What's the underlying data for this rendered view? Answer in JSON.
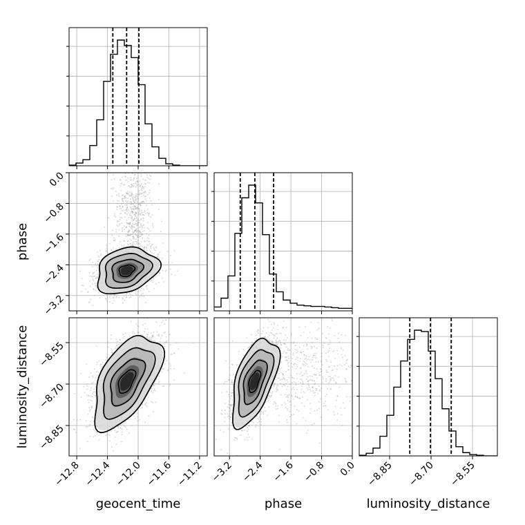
{
  "chart_data": {
    "type": "corner",
    "params": [
      "geocent_time",
      "phase",
      "luminosity_distance"
    ],
    "axes": {
      "geocent_time": {
        "label": "geocent_time",
        "range": [
          -12.9,
          -11.1
        ],
        "ticks": [
          -12.8,
          -12.4,
          -12.0,
          -11.6,
          -11.2
        ],
        "tick_labels": [
          "−12.8",
          "−12.4",
          "−12.0",
          "−11.6",
          "−11.2"
        ]
      },
      "phase": {
        "label": "phase",
        "range": [
          -3.6,
          0.0
        ],
        "ticks": [
          -3.2,
          -2.4,
          -1.6,
          -0.8,
          0.0
        ],
        "tick_labels": [
          "−3.2",
          "−2.4",
          "−1.6",
          "−0.8",
          "0.0"
        ]
      },
      "luminosity_distance": {
        "label": "luminosity_distance",
        "range": [
          -8.96,
          -8.46
        ],
        "ticks": [
          -8.85,
          -8.7,
          -8.55
        ],
        "tick_labels": [
          "−8.85",
          "−8.70",
          "−8.55"
        ]
      }
    },
    "marginals": {
      "geocent_time": {
        "bin_edges": [
          -12.9,
          -12.81,
          -12.72,
          -12.63,
          -12.54,
          -12.45,
          -12.36,
          -12.27,
          -12.18,
          -12.09,
          -12.0,
          -11.91,
          -11.82,
          -11.73,
          -11.64,
          -11.55,
          -11.46,
          -11.37,
          -11.28,
          -11.19,
          -11.1
        ],
        "counts": [
          1,
          4,
          9,
          30,
          68,
          125,
          165,
          186,
          178,
          160,
          120,
          62,
          28,
          11,
          3,
          1,
          0,
          0,
          0,
          0
        ],
        "quantiles": [
          -12.33,
          -12.15,
          -11.99
        ]
      },
      "phase": {
        "bin_edges": [
          -3.6,
          -3.42,
          -3.24,
          -3.06,
          -2.88,
          -2.7,
          -2.52,
          -2.34,
          -2.16,
          -1.98,
          -1.8,
          -1.62,
          -1.44,
          -1.26,
          -1.08,
          -0.9,
          -0.72,
          -0.54,
          -0.36,
          -0.18,
          0.0
        ],
        "counts": [
          6,
          20,
          55,
          122,
          178,
          198,
          170,
          120,
          58,
          30,
          17,
          12,
          9,
          8,
          7,
          7,
          6,
          5,
          4,
          4
        ],
        "quantiles": [
          -2.92,
          -2.54,
          -2.05
        ]
      },
      "luminosity_distance": {
        "bin_edges": [
          -8.96,
          -8.935,
          -8.91,
          -8.885,
          -8.86,
          -8.835,
          -8.81,
          -8.785,
          -8.76,
          -8.735,
          -8.71,
          -8.685,
          -8.66,
          -8.635,
          -8.61,
          -8.585,
          -8.56,
          -8.535,
          -8.51,
          -8.485,
          -8.46
        ],
        "counts": [
          1,
          4,
          12,
          30,
          62,
          105,
          145,
          178,
          192,
          190,
          160,
          118,
          72,
          38,
          14,
          5,
          2,
          1,
          0,
          0
        ],
        "quantiles": [
          -8.777,
          -8.702,
          -8.627
        ]
      }
    },
    "joint": {
      "phase_vs_geocent_time": {
        "mean": [
          -12.15,
          -2.55
        ],
        "sd": [
          0.2,
          0.3
        ],
        "rho": 0.25,
        "tail": {
          "fraction": 0.3,
          "mean": [
            -12.05,
            -1.0
          ],
          "sd": [
            0.12,
            0.75
          ]
        }
      },
      "luminosity_distance_vs_geocent_time": {
        "mean": [
          -12.15,
          -8.69
        ],
        "sd": [
          0.22,
          0.085
        ],
        "rho": 0.55
      },
      "luminosity_distance_vs_phase": {
        "mean": [
          -2.55,
          -8.69
        ],
        "sd": [
          0.3,
          0.08
        ],
        "rho": 0.55,
        "tail": {
          "fraction": 0.25,
          "mean": [
            -1.3,
            -8.66
          ],
          "sd": [
            0.75,
            0.09
          ]
        }
      }
    }
  }
}
